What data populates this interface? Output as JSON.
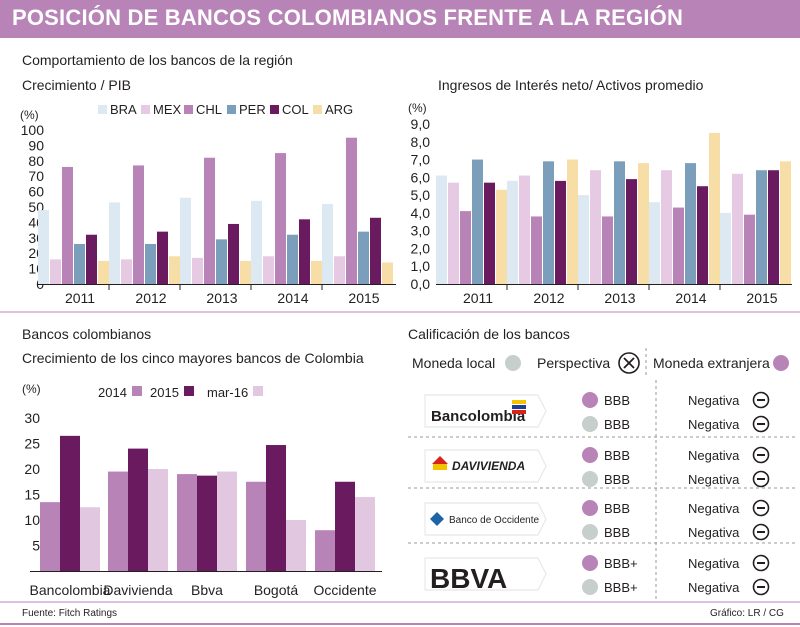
{
  "title": "POSICIÓN DE BANCOS COLOMBIANOS FRENTE A LA REGIÓN",
  "section_region": "Comportamiento de los bancos de la región",
  "section_colombia": "Bancos colombianos",
  "section_rating": "Calificación de los bancos",
  "source": "Fuente: Fitch Ratings",
  "credit": "Gráfico: LR / CG",
  "colors": {
    "BRA": "#dce8f2",
    "MEX": "#e6c9e2",
    "CHL": "#b884b8",
    "PER": "#7b9fba",
    "COL": "#6a1b60",
    "ARG": "#f7dea6",
    "b2014": "#b884b8",
    "b2015": "#6a1b60",
    "bmar16": "#e2c7e0",
    "grey_circle": "#c6cfcb",
    "purple_circle": "#b884b8"
  },
  "chart_data": [
    {
      "type": "bar",
      "title": "Crecimiento / PIB",
      "ylabel": "(%)",
      "ylim": [
        0,
        100
      ],
      "yticks": [
        "0",
        "10",
        "20",
        "30",
        "40",
        "50",
        "60",
        "70",
        "80",
        "90",
        "100"
      ],
      "categories": [
        "2011",
        "2012",
        "2013",
        "2014",
        "2015"
      ],
      "series": [
        {
          "name": "BRA",
          "values": [
            48,
            53,
            56,
            54,
            52
          ]
        },
        {
          "name": "MEX",
          "values": [
            16,
            16,
            17,
            18,
            18
          ]
        },
        {
          "name": "CHL",
          "values": [
            76,
            77,
            82,
            85,
            95
          ]
        },
        {
          "name": "PER",
          "values": [
            26,
            26,
            29,
            32,
            34
          ]
        },
        {
          "name": "COL",
          "values": [
            32,
            34,
            39,
            42,
            43
          ]
        },
        {
          "name": "ARG",
          "values": [
            15,
            18,
            15,
            15,
            14
          ]
        }
      ]
    },
    {
      "type": "bar",
      "title": "Ingresos de Interés neto/ Activos promedio",
      "ylabel": "(%)",
      "ylim": [
        0,
        9
      ],
      "yticks": [
        "0,0",
        "1,0",
        "2,0",
        "3,0",
        "4,0",
        "5,0",
        "6,0",
        "7,0",
        "8,0",
        "9,0"
      ],
      "categories": [
        "2011",
        "2012",
        "2013",
        "2014",
        "2015"
      ],
      "series": [
        {
          "name": "BRA",
          "values": [
            6.1,
            5.8,
            5.0,
            4.6,
            4.0
          ]
        },
        {
          "name": "MEX",
          "values": [
            5.7,
            6.1,
            6.4,
            6.4,
            6.2
          ]
        },
        {
          "name": "CHL",
          "values": [
            4.1,
            3.8,
            3.8,
            4.3,
            3.9
          ]
        },
        {
          "name": "PER",
          "values": [
            7.0,
            6.9,
            6.9,
            6.8,
            6.4
          ]
        },
        {
          "name": "COL",
          "values": [
            5.7,
            5.8,
            5.9,
            5.5,
            6.4
          ]
        },
        {
          "name": "ARG",
          "values": [
            5.3,
            7.0,
            6.8,
            8.5,
            6.9
          ]
        }
      ]
    },
    {
      "type": "bar",
      "title": "Crecimiento de los cinco mayores bancos de Colombia",
      "ylabel": "(%)",
      "ylim": [
        0,
        30
      ],
      "yticks": [
        "5",
        "10",
        "15",
        "20",
        "25",
        "30"
      ],
      "categories": [
        "Bancolombia",
        "Davivienda",
        "Bbva",
        "Bogotá",
        "Occidente"
      ],
      "series": [
        {
          "name": "2014",
          "values": [
            13.5,
            19.5,
            19.0,
            17.5,
            8.0
          ]
        },
        {
          "name": "2015",
          "values": [
            26.5,
            24.0,
            18.7,
            24.7,
            17.5
          ]
        },
        {
          "name": "mar-16",
          "values": [
            12.5,
            20.0,
            19.5,
            10.0,
            14.5
          ]
        }
      ]
    }
  ],
  "ratings": {
    "legend": {
      "local": "Moneda local",
      "perspectiva": "Perspectiva",
      "extranjera": "Moneda extranjera"
    },
    "banks": [
      {
        "name": "Bancolombia",
        "foreign": "BBB",
        "local": "BBB",
        "outlook_foreign": "Negativa",
        "outlook_local": "Negativa"
      },
      {
        "name": "DAVIVIENDA",
        "foreign": "BBB",
        "local": "BBB",
        "outlook_foreign": "Negativa",
        "outlook_local": "Negativa"
      },
      {
        "name": "Banco de Occidente",
        "foreign": "BBB",
        "local": "BBB",
        "outlook_foreign": "Negativa",
        "outlook_local": "Negativa"
      },
      {
        "name": "BBVA",
        "foreign": "BBB+",
        "local": "BBB+",
        "outlook_foreign": "Negativa",
        "outlook_local": "Negativa"
      }
    ]
  }
}
